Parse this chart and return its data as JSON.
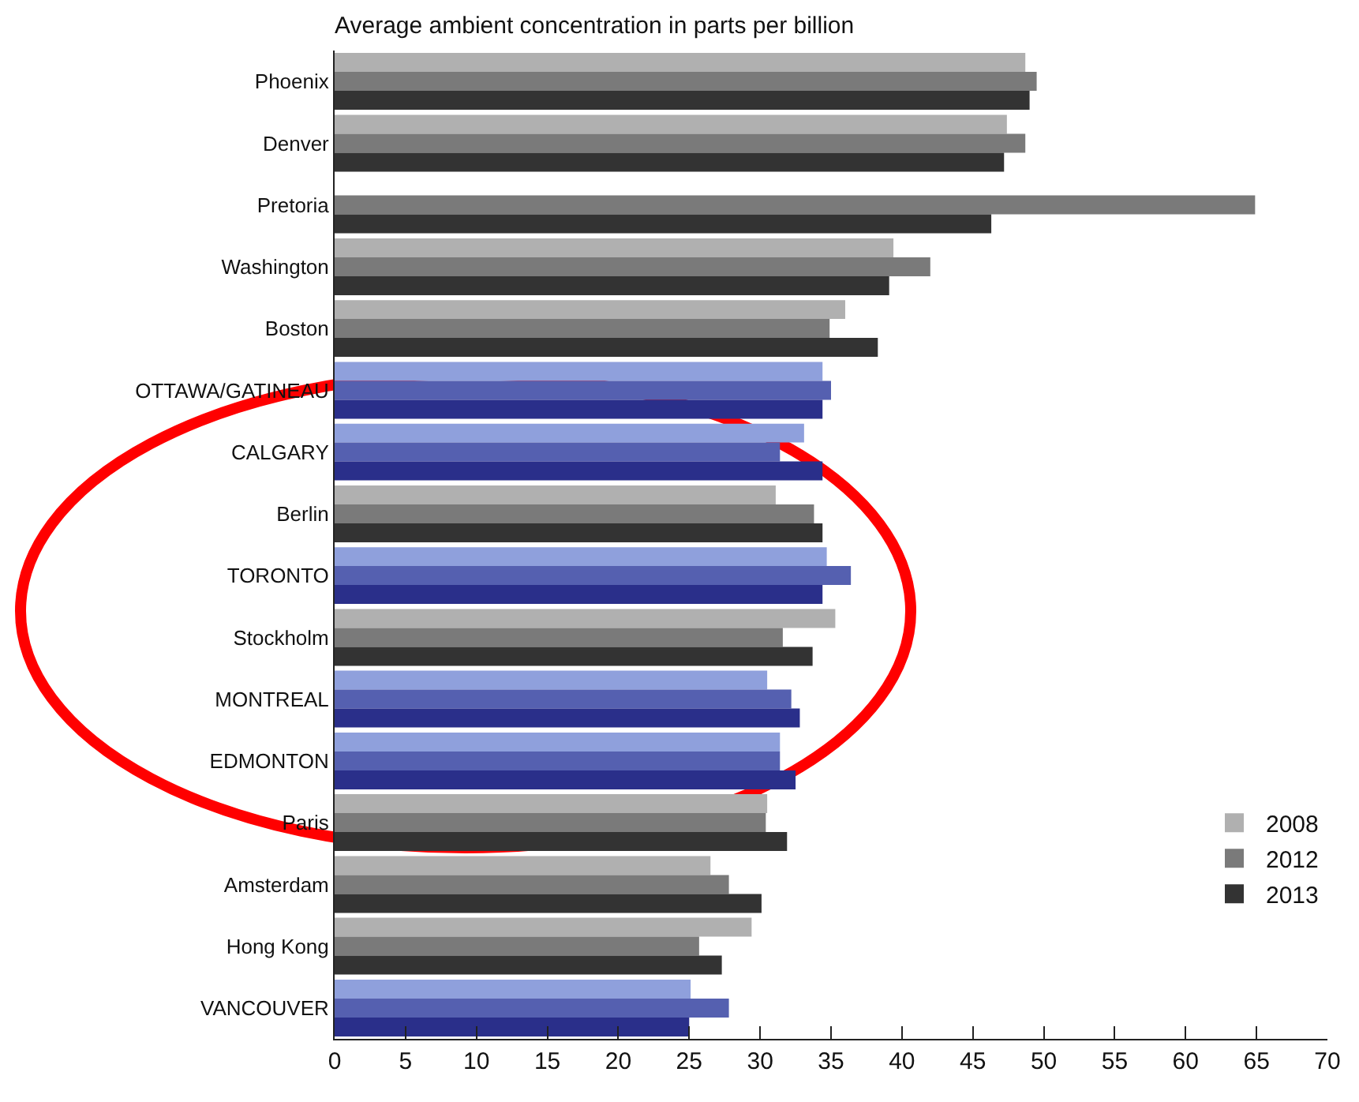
{
  "chart_data": {
    "type": "bar",
    "orientation": "horizontal",
    "title": "Average ambient concentration in parts per billion",
    "categories": [
      "Phoenix",
      "Denver",
      "Pretoria",
      "Washington",
      "Boston",
      "OTTAWA/GATINEAU",
      "CALGARY",
      "Berlin",
      "TORONTO",
      "Stockholm",
      "MONTREAL",
      "EDMONTON",
      "Paris",
      "Amsterdam",
      "Hong Kong",
      "VANCOUVER"
    ],
    "series": [
      {
        "name": "2008",
        "colors": [
          "#b0b0b0",
          "#b0b0b0",
          "#b0b0b0",
          "#b0b0b0",
          "#b0b0b0",
          "#8fa0dc",
          "#8fa0dc",
          "#b0b0b0",
          "#8fa0dc",
          "#b0b0b0",
          "#8fa0dc",
          "#8fa0dc",
          "#b0b0b0",
          "#b0b0b0",
          "#b0b0b0",
          "#8fa0dc"
        ],
        "values": [
          48.7,
          47.4,
          null,
          39.4,
          36.0,
          34.4,
          33.1,
          31.1,
          34.7,
          35.3,
          30.5,
          31.4,
          30.5,
          26.5,
          29.4,
          25.1
        ]
      },
      {
        "name": "2012",
        "colors": [
          "#7a7a7a",
          "#7a7a7a",
          "#7a7a7a",
          "#7a7a7a",
          "#7a7a7a",
          "#5560b0",
          "#5560b0",
          "#7a7a7a",
          "#5560b0",
          "#7a7a7a",
          "#5560b0",
          "#5560b0",
          "#7a7a7a",
          "#7a7a7a",
          "#7a7a7a",
          "#5560b0"
        ],
        "values": [
          49.5,
          48.7,
          64.9,
          42.0,
          34.9,
          35.0,
          31.4,
          33.8,
          36.4,
          31.6,
          32.2,
          31.4,
          30.4,
          27.8,
          25.7,
          27.8
        ]
      },
      {
        "name": "2013",
        "colors": [
          "#333333",
          "#333333",
          "#333333",
          "#333333",
          "#333333",
          "#2a2f8a",
          "#2a2f8a",
          "#333333",
          "#2a2f8a",
          "#333333",
          "#2a2f8a",
          "#2a2f8a",
          "#333333",
          "#333333",
          "#333333",
          "#2a2f8a"
        ],
        "values": [
          49.0,
          47.2,
          46.3,
          39.1,
          38.3,
          34.4,
          34.4,
          34.4,
          34.4,
          33.7,
          32.8,
          32.5,
          31.9,
          30.1,
          27.3,
          25.0
        ]
      }
    ],
    "xlim": [
      0,
      70
    ],
    "xticks": [
      0,
      5,
      10,
      15,
      20,
      25,
      30,
      35,
      40,
      45,
      50,
      55,
      60,
      65,
      70
    ],
    "grid": false,
    "legend": "bottom right"
  }
}
